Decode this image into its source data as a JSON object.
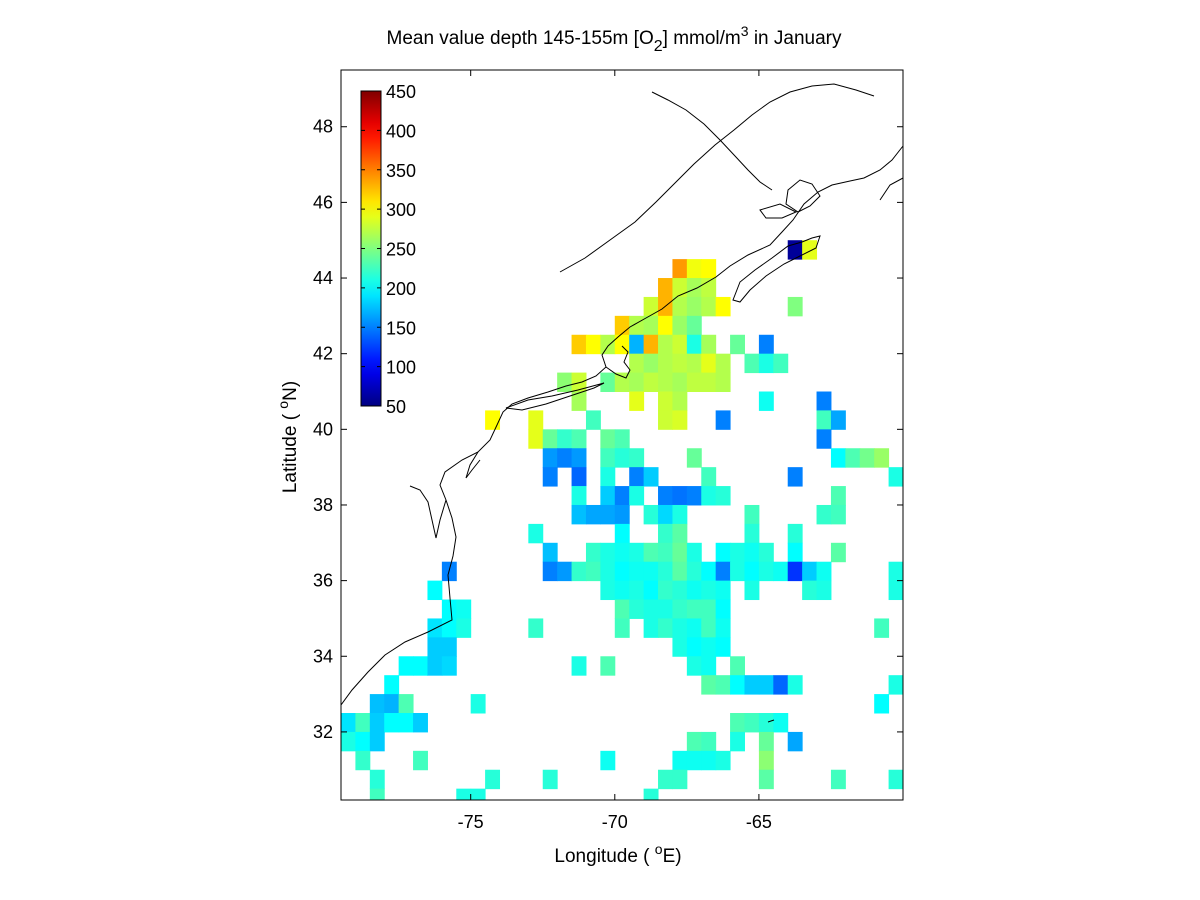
{
  "title": {
    "prefix": "Mean value depth 145-155m [O",
    "sub": "2",
    "middle": "] mmol/m",
    "sup": "3",
    "suffix": " in January"
  },
  "xaxis": {
    "label_prefix": "Longitude ( ",
    "label_sup": "o",
    "label_suffix": "E)"
  },
  "yaxis": {
    "label_prefix": "Latitude ( ",
    "label_sup": "o",
    "label_suffix": "N)"
  },
  "colorbar": {
    "ticks": [
      "450",
      "400",
      "350",
      "300",
      "250",
      "200",
      "150",
      "100",
      "50"
    ],
    "colormap": "jet",
    "placement": "top-left"
  },
  "chart_data": {
    "type": "heatmap",
    "colormap": "jet",
    "clim": [
      50,
      450
    ],
    "xlim": [
      -79.5,
      -60.0
    ],
    "ylim": [
      30.2,
      49.5
    ],
    "xticks": [
      -75,
      -70,
      -65
    ],
    "xtick_labels": [
      "-75",
      "-70",
      "-65"
    ],
    "yticks": [
      32,
      34,
      36,
      38,
      40,
      42,
      44,
      46,
      48
    ],
    "ytick_labels": [
      "32",
      "34",
      "36",
      "38",
      "40",
      "42",
      "44",
      "46",
      "48"
    ],
    "grid": false,
    "cell_size_deg": 0.5,
    "cells": [
      [
        -67.75,
        44.25,
        340
      ],
      [
        -67.25,
        44.25,
        295
      ],
      [
        -66.75,
        44.25,
        300
      ],
      [
        -68.25,
        43.75,
        330
      ],
      [
        -67.75,
        43.75,
        280
      ],
      [
        -67.25,
        43.75,
        265
      ],
      [
        -66.75,
        43.75,
        275
      ],
      [
        -68.75,
        43.25,
        280
      ],
      [
        -68.25,
        43.25,
        330
      ],
      [
        -67.75,
        43.25,
        270
      ],
      [
        -67.25,
        43.25,
        260
      ],
      [
        -66.75,
        43.25,
        270
      ],
      [
        -66.25,
        43.25,
        300
      ],
      [
        -63.75,
        44.75,
        60
      ],
      [
        -63.25,
        44.75,
        290
      ],
      [
        -63.75,
        43.25,
        250
      ],
      [
        -69.75,
        42.75,
        320
      ],
      [
        -69.25,
        42.75,
        270
      ],
      [
        -68.75,
        42.75,
        265
      ],
      [
        -68.25,
        42.75,
        300
      ],
      [
        -67.75,
        42.75,
        260
      ],
      [
        -67.25,
        42.75,
        240
      ],
      [
        -71.25,
        42.25,
        320
      ],
      [
        -70.75,
        42.25,
        300
      ],
      [
        -70.25,
        42.25,
        270
      ],
      [
        -69.75,
        42.25,
        300
      ],
      [
        -69.25,
        42.25,
        170
      ],
      [
        -68.75,
        42.25,
        330
      ],
      [
        -68.25,
        42.25,
        270
      ],
      [
        -67.75,
        42.25,
        280
      ],
      [
        -67.25,
        42.25,
        210
      ],
      [
        -66.75,
        42.25,
        265
      ],
      [
        -65.75,
        42.25,
        240
      ],
      [
        -64.75,
        42.25,
        150
      ],
      [
        -69.25,
        41.75,
        270
      ],
      [
        -68.75,
        41.75,
        260
      ],
      [
        -68.25,
        41.75,
        270
      ],
      [
        -67.75,
        41.75,
        275
      ],
      [
        -67.25,
        41.75,
        270
      ],
      [
        -66.75,
        41.75,
        290
      ],
      [
        -66.25,
        41.75,
        270
      ],
      [
        -65.25,
        41.75,
        230
      ],
      [
        -64.75,
        41.75,
        210
      ],
      [
        -64.25,
        41.75,
        225
      ],
      [
        -71.75,
        41.25,
        255
      ],
      [
        -71.25,
        41.25,
        280
      ],
      [
        -70.25,
        41.25,
        240
      ],
      [
        -69.75,
        41.25,
        270
      ],
      [
        -69.25,
        41.25,
        265
      ],
      [
        -68.75,
        41.25,
        275
      ],
      [
        -68.25,
        41.25,
        270
      ],
      [
        -67.75,
        41.25,
        265
      ],
      [
        -67.25,
        41.25,
        275
      ],
      [
        -66.75,
        41.25,
        275
      ],
      [
        -66.25,
        41.25,
        270
      ],
      [
        -71.25,
        40.75,
        265
      ],
      [
        -69.25,
        40.75,
        290
      ],
      [
        -68.25,
        40.75,
        280
      ],
      [
        -67.75,
        40.75,
        270
      ],
      [
        -64.75,
        40.75,
        205
      ],
      [
        -62.75,
        40.75,
        150
      ],
      [
        -74.25,
        40.25,
        300
      ],
      [
        -72.75,
        40.25,
        290
      ],
      [
        -70.75,
        40.25,
        225
      ],
      [
        -68.25,
        40.25,
        280
      ],
      [
        -67.75,
        40.25,
        285
      ],
      [
        -66.25,
        40.25,
        150
      ],
      [
        -62.75,
        40.25,
        225
      ],
      [
        -62.25,
        40.25,
        165
      ],
      [
        -72.75,
        39.75,
        290
      ],
      [
        -72.25,
        39.75,
        240
      ],
      [
        -71.75,
        39.75,
        220
      ],
      [
        -71.25,
        39.75,
        230
      ],
      [
        -70.25,
        39.75,
        240
      ],
      [
        -69.75,
        39.75,
        230
      ],
      [
        -62.75,
        39.75,
        150
      ],
      [
        -72.25,
        39.25,
        160
      ],
      [
        -71.75,
        39.25,
        150
      ],
      [
        -71.25,
        39.25,
        160
      ],
      [
        -70.25,
        39.25,
        225
      ],
      [
        -69.75,
        39.25,
        215
      ],
      [
        -69.25,
        39.25,
        220
      ],
      [
        -67.25,
        39.25,
        240
      ],
      [
        -62.25,
        39.25,
        200
      ],
      [
        -61.75,
        39.25,
        230
      ],
      [
        -61.25,
        39.25,
        245
      ],
      [
        -60.75,
        39.25,
        260
      ],
      [
        -72.25,
        38.75,
        150
      ],
      [
        -71.25,
        38.75,
        140
      ],
      [
        -70.25,
        38.75,
        210
      ],
      [
        -69.25,
        38.75,
        150
      ],
      [
        -68.75,
        38.75,
        180
      ],
      [
        -66.75,
        38.75,
        225
      ],
      [
        -63.75,
        38.75,
        150
      ],
      [
        -60.25,
        38.75,
        210
      ],
      [
        -71.25,
        38.25,
        210
      ],
      [
        -70.25,
        38.25,
        180
      ],
      [
        -69.75,
        38.25,
        150
      ],
      [
        -69.25,
        38.25,
        210
      ],
      [
        -68.25,
        38.25,
        150
      ],
      [
        -67.75,
        38.25,
        145
      ],
      [
        -67.25,
        38.25,
        150
      ],
      [
        -66.75,
        38.25,
        210
      ],
      [
        -66.25,
        38.25,
        215
      ],
      [
        -62.25,
        38.25,
        230
      ],
      [
        -71.25,
        37.75,
        175
      ],
      [
        -70.75,
        37.75,
        165
      ],
      [
        -70.25,
        37.75,
        165
      ],
      [
        -69.75,
        37.75,
        160
      ],
      [
        -68.75,
        37.75,
        215
      ],
      [
        -68.25,
        37.75,
        185
      ],
      [
        -67.75,
        37.75,
        210
      ],
      [
        -65.25,
        37.75,
        225
      ],
      [
        -62.75,
        37.75,
        220
      ],
      [
        -62.25,
        37.75,
        225
      ],
      [
        -72.75,
        37.25,
        210
      ],
      [
        -69.75,
        37.25,
        200
      ],
      [
        -68.25,
        37.25,
        220
      ],
      [
        -67.75,
        37.25,
        235
      ],
      [
        -65.25,
        37.25,
        215
      ],
      [
        -63.75,
        37.25,
        215
      ],
      [
        -72.25,
        36.75,
        175
      ],
      [
        -70.75,
        36.75,
        220
      ],
      [
        -70.25,
        36.75,
        210
      ],
      [
        -69.75,
        36.75,
        205
      ],
      [
        -69.25,
        36.75,
        210
      ],
      [
        -68.75,
        36.75,
        230
      ],
      [
        -68.25,
        36.75,
        225
      ],
      [
        -67.75,
        36.75,
        240
      ],
      [
        -67.25,
        36.75,
        210
      ],
      [
        -66.25,
        36.75,
        200
      ],
      [
        -65.75,
        36.75,
        210
      ],
      [
        -65.25,
        36.75,
        205
      ],
      [
        -64.75,
        36.75,
        215
      ],
      [
        -63.75,
        36.75,
        200
      ],
      [
        -62.25,
        36.75,
        235
      ],
      [
        -75.75,
        36.25,
        150
      ],
      [
        -72.25,
        36.25,
        150
      ],
      [
        -71.75,
        36.25,
        160
      ],
      [
        -71.25,
        36.25,
        220
      ],
      [
        -70.75,
        36.25,
        225
      ],
      [
        -70.25,
        36.25,
        210
      ],
      [
        -69.75,
        36.25,
        200
      ],
      [
        -69.25,
        36.25,
        205
      ],
      [
        -68.75,
        36.25,
        205
      ],
      [
        -68.25,
        36.25,
        215
      ],
      [
        -67.75,
        36.25,
        235
      ],
      [
        -67.25,
        36.25,
        215
      ],
      [
        -66.75,
        36.25,
        200
      ],
      [
        -66.25,
        36.25,
        150
      ],
      [
        -65.75,
        36.25,
        210
      ],
      [
        -65.25,
        36.25,
        200
      ],
      [
        -64.75,
        36.25,
        210
      ],
      [
        -64.25,
        36.25,
        205
      ],
      [
        -63.75,
        36.25,
        120
      ],
      [
        -63.25,
        36.25,
        180
      ],
      [
        -62.75,
        36.25,
        205
      ],
      [
        -60.25,
        36.25,
        210
      ],
      [
        -76.25,
        35.75,
        200
      ],
      [
        -70.25,
        35.75,
        210
      ],
      [
        -69.75,
        35.75,
        205
      ],
      [
        -69.25,
        35.75,
        210
      ],
      [
        -68.75,
        35.75,
        200
      ],
      [
        -68.25,
        35.75,
        220
      ],
      [
        -67.75,
        35.75,
        215
      ],
      [
        -67.25,
        35.75,
        205
      ],
      [
        -66.75,
        35.75,
        210
      ],
      [
        -66.25,
        35.75,
        205
      ],
      [
        -65.25,
        35.75,
        210
      ],
      [
        -63.25,
        35.75,
        215
      ],
      [
        -62.75,
        35.75,
        210
      ],
      [
        -60.25,
        35.75,
        210
      ],
      [
        -75.75,
        35.25,
        200
      ],
      [
        -75.25,
        35.25,
        205
      ],
      [
        -69.75,
        35.25,
        230
      ],
      [
        -69.25,
        35.25,
        215
      ],
      [
        -68.75,
        35.25,
        210
      ],
      [
        -68.25,
        35.25,
        210
      ],
      [
        -67.75,
        35.25,
        220
      ],
      [
        -67.25,
        35.25,
        225
      ],
      [
        -66.75,
        35.25,
        225
      ],
      [
        -66.25,
        35.25,
        200
      ],
      [
        -76.25,
        34.75,
        190
      ],
      [
        -75.75,
        34.75,
        200
      ],
      [
        -75.25,
        34.75,
        210
      ],
      [
        -72.75,
        34.75,
        220
      ],
      [
        -69.75,
        34.75,
        225
      ],
      [
        -68.75,
        34.75,
        210
      ],
      [
        -68.25,
        34.75,
        220
      ],
      [
        -67.75,
        34.75,
        210
      ],
      [
        -67.25,
        34.75,
        205
      ],
      [
        -66.75,
        34.75,
        225
      ],
      [
        -66.25,
        34.75,
        205
      ],
      [
        -60.75,
        34.75,
        225
      ],
      [
        -76.25,
        34.25,
        180
      ],
      [
        -75.75,
        34.25,
        180
      ],
      [
        -67.75,
        34.25,
        210
      ],
      [
        -67.25,
        34.25,
        200
      ],
      [
        -66.75,
        34.25,
        205
      ],
      [
        -66.25,
        34.25,
        200
      ],
      [
        -77.25,
        33.75,
        200
      ],
      [
        -76.75,
        33.75,
        200
      ],
      [
        -76.25,
        33.75,
        180
      ],
      [
        -75.75,
        33.75,
        185
      ],
      [
        -71.25,
        33.75,
        210
      ],
      [
        -70.25,
        33.75,
        230
      ],
      [
        -67.25,
        33.75,
        210
      ],
      [
        -66.75,
        33.75,
        205
      ],
      [
        -65.75,
        33.75,
        230
      ],
      [
        -77.75,
        33.25,
        200
      ],
      [
        -66.75,
        33.25,
        235
      ],
      [
        -66.25,
        33.25,
        230
      ],
      [
        -65.75,
        33.25,
        200
      ],
      [
        -65.25,
        33.25,
        180
      ],
      [
        -64.75,
        33.25,
        180
      ],
      [
        -64.25,
        33.25,
        140
      ],
      [
        -63.75,
        33.25,
        210
      ],
      [
        -60.25,
        33.25,
        210
      ],
      [
        -78.25,
        32.75,
        175
      ],
      [
        -77.75,
        32.75,
        170
      ],
      [
        -77.25,
        32.75,
        230
      ],
      [
        -74.75,
        32.75,
        210
      ],
      [
        -60.75,
        32.75,
        200
      ],
      [
        -79.25,
        32.25,
        190
      ],
      [
        -78.75,
        32.25,
        225
      ],
      [
        -78.25,
        32.25,
        180
      ],
      [
        -77.75,
        32.25,
        200
      ],
      [
        -77.25,
        32.25,
        200
      ],
      [
        -76.75,
        32.25,
        180
      ],
      [
        -65.75,
        32.25,
        230
      ],
      [
        -65.25,
        32.25,
        225
      ],
      [
        -64.75,
        32.25,
        215
      ],
      [
        -64.25,
        32.25,
        205
      ],
      [
        -79.25,
        31.75,
        210
      ],
      [
        -78.75,
        31.75,
        200
      ],
      [
        -78.25,
        31.75,
        180
      ],
      [
        -67.25,
        31.75,
        230
      ],
      [
        -66.75,
        31.75,
        225
      ],
      [
        -65.75,
        31.75,
        210
      ],
      [
        -64.75,
        31.75,
        240
      ],
      [
        -63.75,
        31.75,
        165
      ],
      [
        -78.75,
        31.25,
        220
      ],
      [
        -76.75,
        31.25,
        225
      ],
      [
        -70.25,
        31.25,
        205
      ],
      [
        -67.75,
        31.25,
        205
      ],
      [
        -67.25,
        31.25,
        205
      ],
      [
        -66.75,
        31.25,
        205
      ],
      [
        -66.25,
        31.25,
        210
      ],
      [
        -64.75,
        31.25,
        255
      ],
      [
        -78.25,
        30.75,
        215
      ],
      [
        -74.25,
        30.75,
        215
      ],
      [
        -72.25,
        30.75,
        215
      ],
      [
        -68.25,
        30.75,
        220
      ],
      [
        -67.75,
        30.75,
        220
      ],
      [
        -64.75,
        30.75,
        235
      ],
      [
        -62.25,
        30.75,
        225
      ],
      [
        -60.25,
        30.75,
        215
      ],
      [
        -78.25,
        30.25,
        225
      ],
      [
        -75.25,
        30.25,
        210
      ],
      [
        -74.75,
        30.25,
        210
      ],
      [
        -68.75,
        30.25,
        215
      ]
    ]
  }
}
